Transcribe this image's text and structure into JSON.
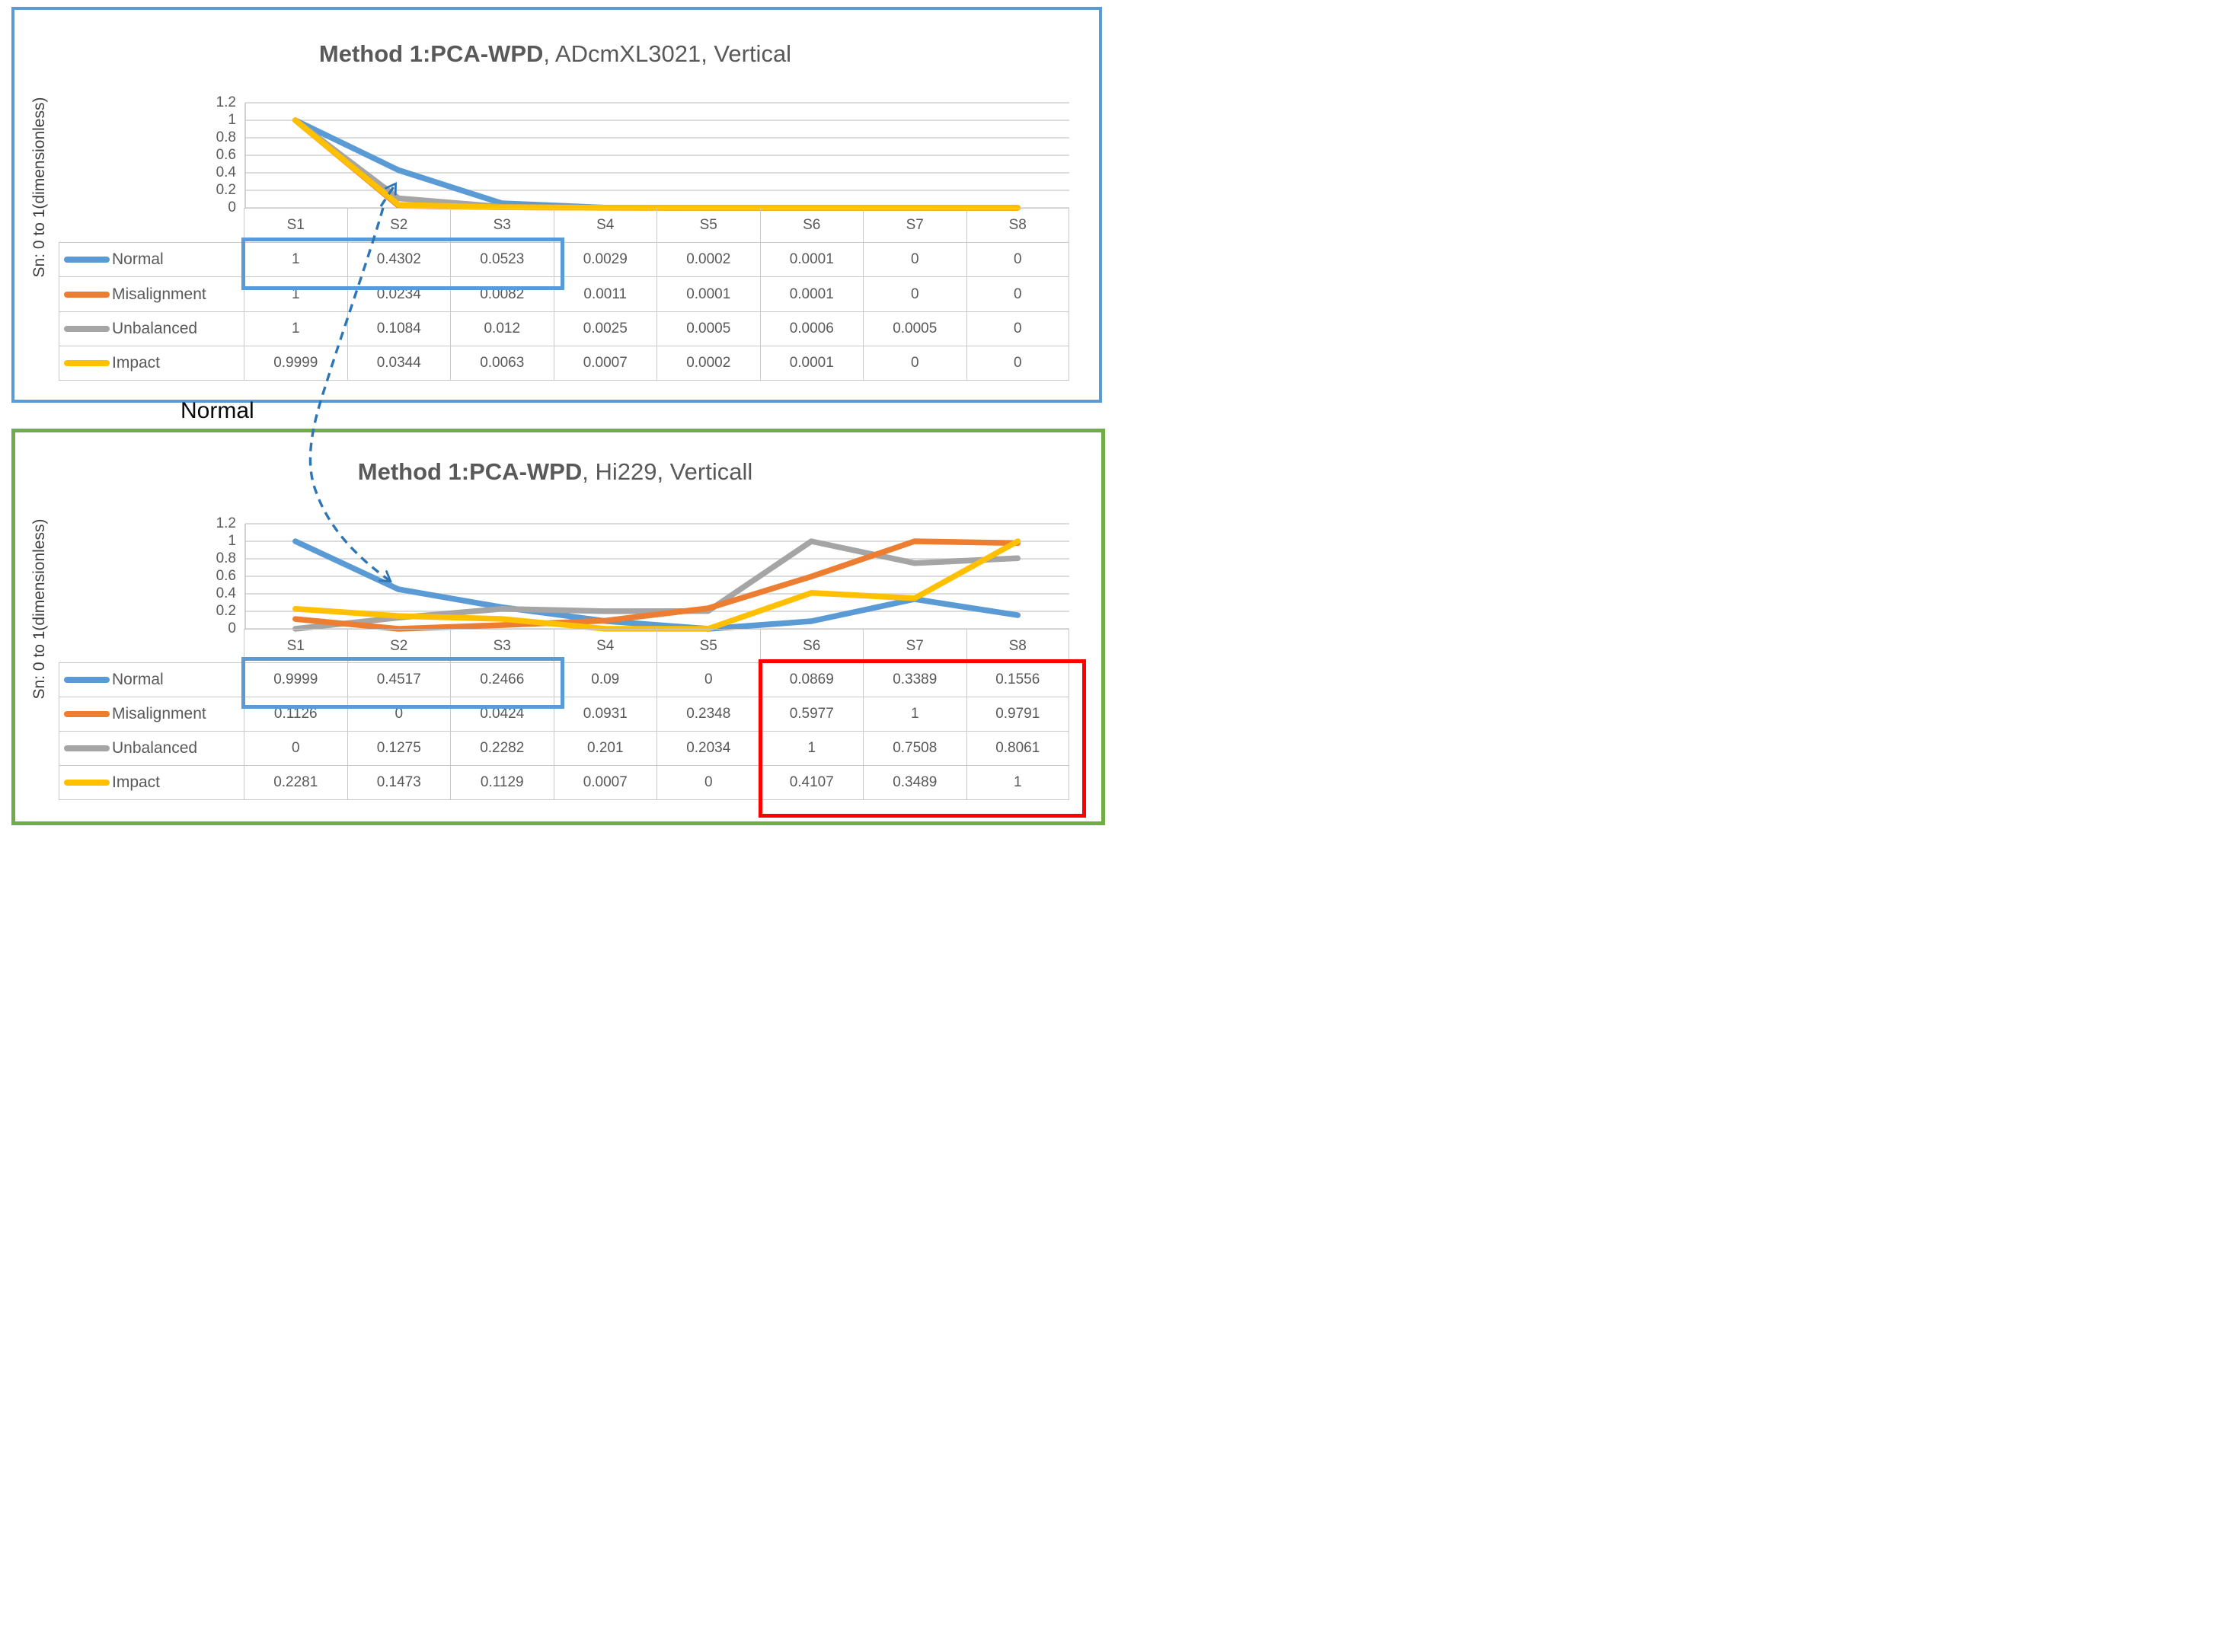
{
  "connector": {
    "label": "Normal",
    "color": "#2E75B6",
    "links": "Normal series S2 value of top chart to Normal series S2 value of bottom chart"
  },
  "ui": {
    "frame_top_color": "#5B9BD5",
    "frame_bottom_color": "#70AD47",
    "highlight_blue": "#5B9BD5",
    "highlight_red": "#FF0000",
    "grid_color": "#DCDCDC",
    "axis_color": "#C4C4C4",
    "text_color": "#595959"
  },
  "chart_data": [
    {
      "type": "line",
      "title_bold": "Method 1:PCA-WPD",
      "title_rest": ", ADcmXL3021, Vertical",
      "ylabel": "Sn: 0 to 1(dimensionless)",
      "ylim": [
        0,
        1.2
      ],
      "yticks": [
        "1.2",
        "1",
        "0.8",
        "0.6",
        "0.4",
        "0.2",
        "0"
      ],
      "grid": true,
      "legend_position": "data-table-left",
      "categories": [
        "S1",
        "S2",
        "S3",
        "S4",
        "S5",
        "S6",
        "S7",
        "S8"
      ],
      "series": [
        {
          "name": "Normal",
          "color": "#5B9BD5",
          "values": [
            1,
            0.4302,
            0.0523,
            0.0029,
            0.0002,
            0.0001,
            0,
            0
          ]
        },
        {
          "name": "Misalignment",
          "color": "#ED7D31",
          "values": [
            1,
            0.0234,
            0.0082,
            0.0011,
            0.0001,
            0.0001,
            0,
            0
          ]
        },
        {
          "name": "Unbalanced",
          "color": "#A5A5A5",
          "values": [
            1,
            0.1084,
            0.012,
            0.0025,
            0.0005,
            0.0006,
            0.0005,
            0
          ]
        },
        {
          "name": "Impact",
          "color": "#FFC000",
          "values": [
            0.9999,
            0.0344,
            0.0063,
            0.0007,
            0.0002,
            0.0001,
            0,
            0
          ]
        }
      ],
      "annotations": {
        "blue_box": {
          "series": "Normal",
          "categories": [
            "S1",
            "S2",
            "S3"
          ],
          "color": "#5B9BD5"
        }
      }
    },
    {
      "type": "line",
      "title_bold": "Method 1:PCA-WPD",
      "title_rest": ", Hi229, Verticall",
      "ylabel": "Sn: 0 to 1(dimensionless)",
      "ylim": [
        0,
        1.2
      ],
      "yticks": [
        "1.2",
        "1",
        "0.8",
        "0.6",
        "0.4",
        "0.2",
        "0"
      ],
      "grid": true,
      "legend_position": "data-table-left",
      "categories": [
        "S1",
        "S2",
        "S3",
        "S4",
        "S5",
        "S6",
        "S7",
        "S8"
      ],
      "series": [
        {
          "name": "Normal",
          "color": "#5B9BD5",
          "values": [
            0.9999,
            0.4517,
            0.2466,
            0.09,
            0,
            0.0869,
            0.3389,
            0.1556
          ]
        },
        {
          "name": "Misalignment",
          "color": "#ED7D31",
          "values": [
            0.1126,
            0,
            0.0424,
            0.0931,
            0.2348,
            0.5977,
            1,
            0.9791
          ]
        },
        {
          "name": "Unbalanced",
          "color": "#A5A5A5",
          "values": [
            0,
            0.1275,
            0.2282,
            0.201,
            0.2034,
            1,
            0.7508,
            0.8061
          ]
        },
        {
          "name": "Impact",
          "color": "#FFC000",
          "values": [
            0.2281,
            0.1473,
            0.1129,
            0.0007,
            0,
            0.4107,
            0.3489,
            1
          ]
        }
      ],
      "annotations": {
        "blue_box": {
          "series": "Normal",
          "categories": [
            "S1",
            "S2",
            "S3"
          ],
          "color": "#5B9BD5"
        },
        "red_box": {
          "series": [
            "Normal",
            "Misalignment",
            "Unbalanced",
            "Impact"
          ],
          "categories": [
            "S6",
            "S7",
            "S8"
          ],
          "color": "#FF0000"
        }
      }
    }
  ]
}
